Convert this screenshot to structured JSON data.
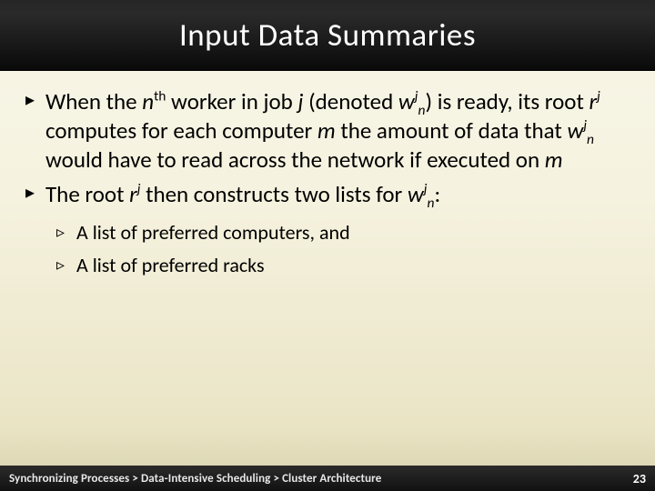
{
  "slide": {
    "title": "Input Data Summaries",
    "title_color": "#ffffff",
    "title_fontsize": 35,
    "header_bg_gradient": [
      "#262626",
      "#0a0a0a"
    ],
    "body_bg_gradient": [
      "#f8f6e8",
      "#e3ddb8"
    ],
    "body_fontsize_lvl1": 25,
    "body_fontsize_lvl2": 22,
    "text_color": "#000000",
    "bullets": [
      {
        "segments": [
          {
            "t": "When the "
          },
          {
            "t": "n",
            "ital": true
          },
          {
            "t": "th",
            "sup": true
          },
          {
            "t": " worker in job "
          },
          {
            "t": "j",
            "ital": true
          },
          {
            "t": " (denoted "
          },
          {
            "t": "w",
            "ital": true
          },
          {
            "t": "j",
            "ital": true,
            "sup": true
          },
          {
            "t": "n",
            "ital": true,
            "sub": true
          },
          {
            "t": ") is ready, its root "
          },
          {
            "t": "r",
            "ital": true
          },
          {
            "t": "j",
            "ital": true,
            "sup": true
          },
          {
            "t": " computes for each computer "
          },
          {
            "t": "m",
            "ital": true
          },
          {
            "t": " the amount of data that "
          },
          {
            "t": "w",
            "ital": true
          },
          {
            "t": "j",
            "ital": true,
            "sup": true
          },
          {
            "t": "n",
            "ital": true,
            "sub": true
          },
          {
            "t": " would have to read across the network if executed on "
          },
          {
            "t": "m",
            "ital": true
          }
        ]
      },
      {
        "segments": [
          {
            "t": "The root "
          },
          {
            "t": "r",
            "ital": true
          },
          {
            "t": "j",
            "ital": true,
            "sup": true
          },
          {
            "t": " then constructs two lists for "
          },
          {
            "t": "w",
            "ital": true
          },
          {
            "t": "j",
            "ital": true,
            "sup": true
          },
          {
            "t": "n",
            "ital": true,
            "sub": true
          },
          {
            "t": ":"
          }
        ],
        "children": [
          {
            "segments": [
              {
                "t": "A list of preferred computers, and"
              }
            ]
          },
          {
            "segments": [
              {
                "t": "A list of preferred racks"
              }
            ]
          }
        ]
      }
    ],
    "breadcrumb": "Synchronizing Processes > Data-Intensive Scheduling > Cluster Architecture",
    "page_number": "23",
    "footer_bg_gradient": [
      "#2b2b2b",
      "#111111"
    ],
    "footer_text_color": "#e8e8e8",
    "footer_fontsize": 13
  }
}
